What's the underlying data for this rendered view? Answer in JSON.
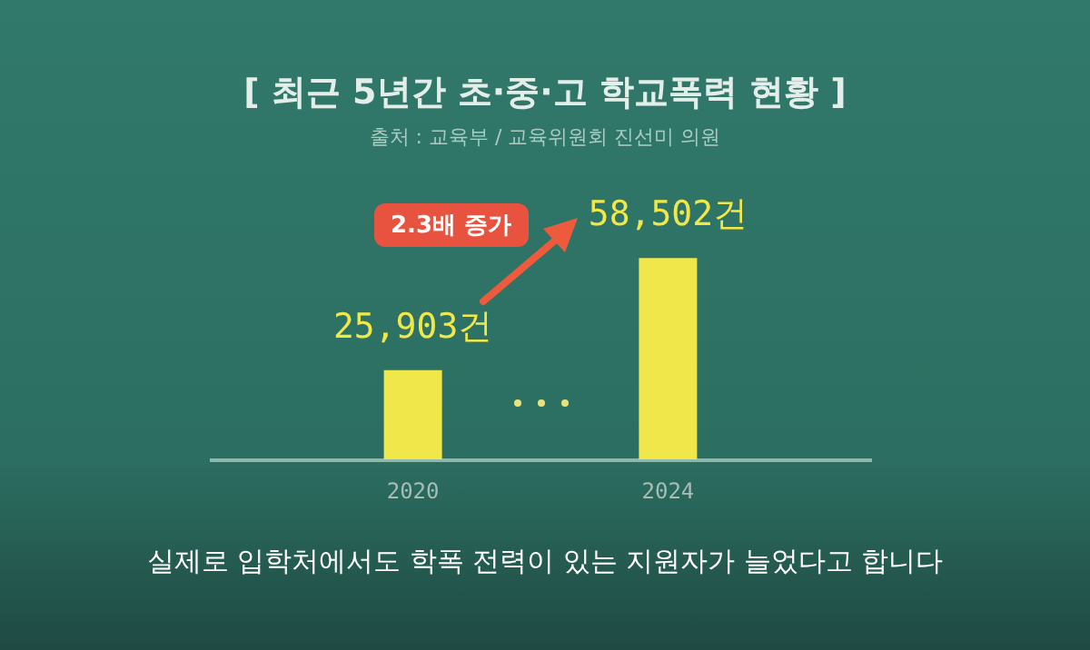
{
  "chart_data": {
    "type": "bar",
    "title": "[ 최근 5년간 초·중·고 학교폭력 현황 ]",
    "subtitle": "출처 : 교육부 / 교육위원회 진선미 의원",
    "categories": [
      "2020",
      "2024"
    ],
    "values": [
      25903,
      58502
    ],
    "value_labels": [
      "25,903건",
      "58,502건"
    ],
    "color": "#f0e84a",
    "tick_labels": "x",
    "annotations": [
      "2.3배 증가",
      "실제로 입학처에서도 학폭 전력이 있는 지원자가 늘었다고 합니다"
    ]
  }
}
